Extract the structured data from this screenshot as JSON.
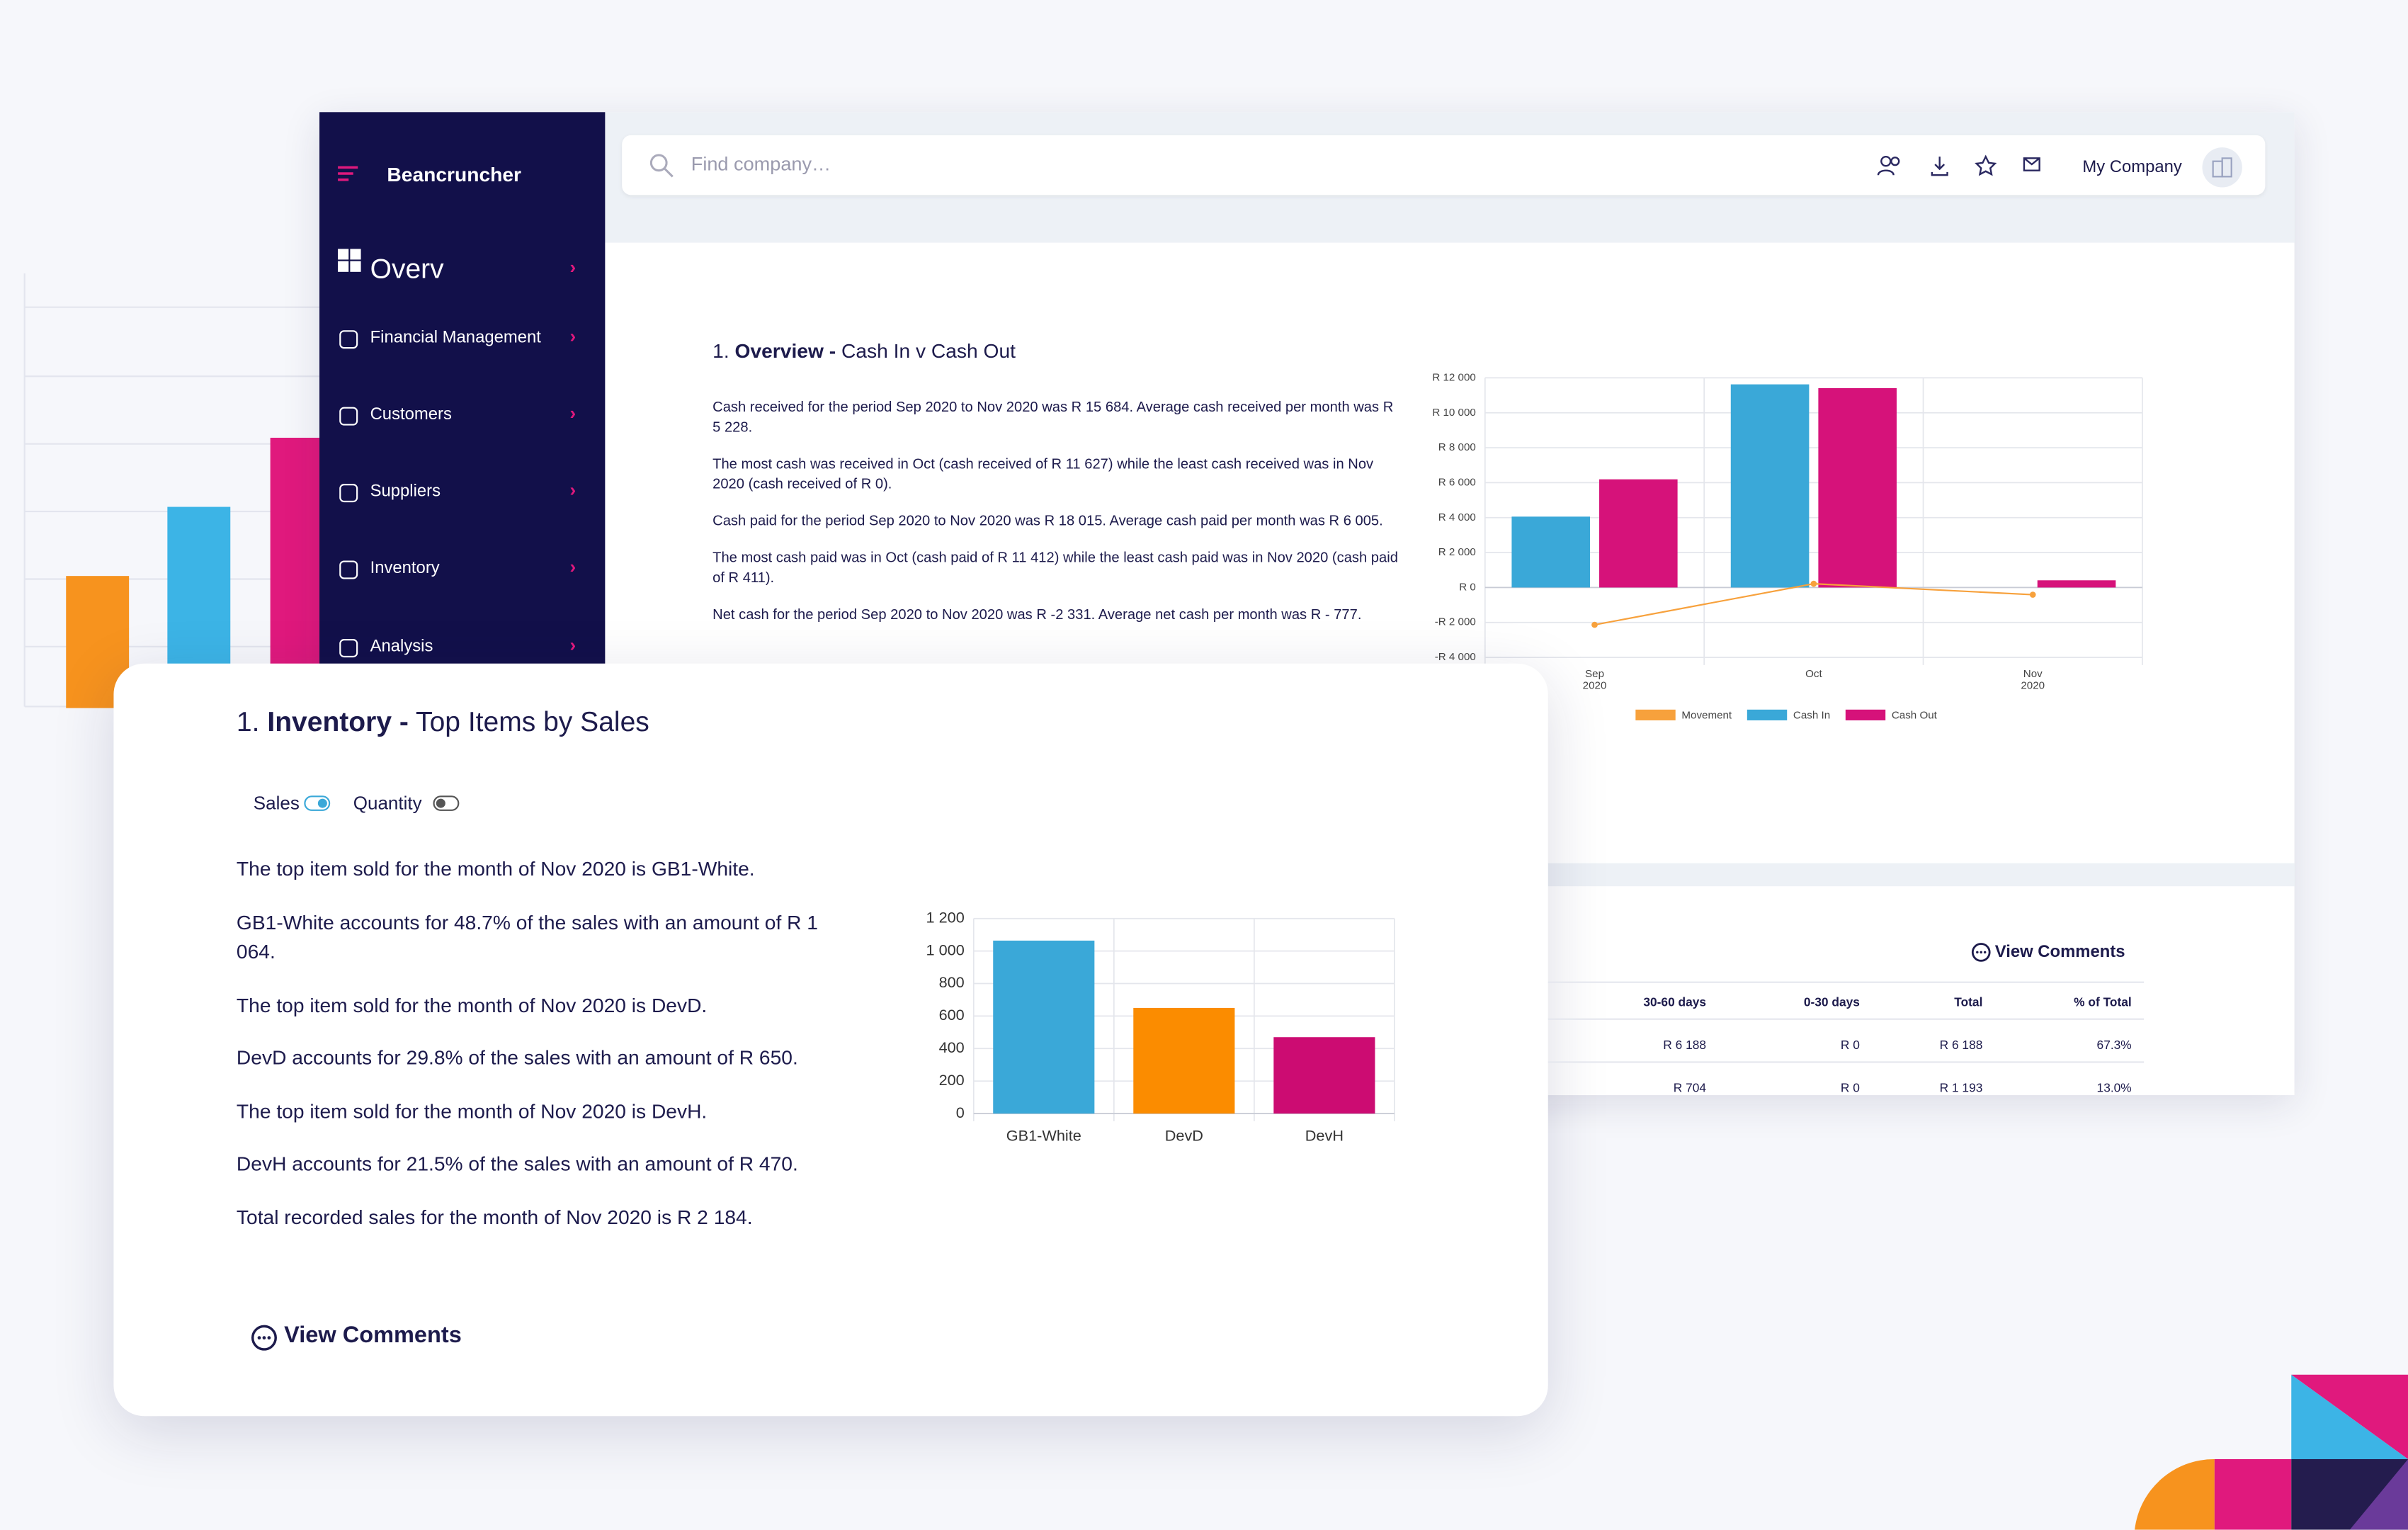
{
  "sidebar": {
    "brand": "Beancruncher",
    "items": [
      "Overv",
      "Financial Management",
      "Customers",
      "Suppliers",
      "Inventory",
      "Analysis"
    ]
  },
  "topbar": {
    "search_placeholder": "Find company…",
    "company": "My Company"
  },
  "overview": {
    "heading_num": "1.",
    "heading_bold": "Overview -",
    "heading_rest": "Cash In v Cash Out",
    "paragraphs": [
      "Cash received for the period Sep 2020 to Nov 2020 was R 15 684. Average cash received per month was R 5 228.",
      "The most cash was received in Oct (cash received of R 11 627) while the least cash received was in Nov 2020 (cash received of R 0).",
      "Cash paid for the period Sep 2020 to Nov 2020 was R 18 015. Average cash paid per month was R 6 005.",
      "The most cash paid was in Oct (cash paid of R 11 412) while the least cash paid was in Nov 2020 (cash paid of R 411).",
      "Net cash for the period Sep 2020 to Nov 2020 was R -2 331. Average net cash per month was R - 777."
    ],
    "chart": {
      "type": "bar",
      "categories": [
        "Sep 2020",
        "Oct",
        "Nov 2020"
      ],
      "series": [
        {
          "name": "Movement",
          "type": "line",
          "color": "#f7a13c",
          "values": [
            -2135,
            215,
            -411
          ]
        },
        {
          "name": "Cash In",
          "type": "bar",
          "color": "#3aa8d8",
          "values": [
            4057,
            11627,
            0
          ]
        },
        {
          "name": "Cash Out",
          "type": "bar",
          "color": "#d6127a",
          "values": [
            6192,
            11412,
            411
          ]
        }
      ],
      "ylim": [
        -4000,
        12000
      ],
      "yticks": [
        {
          "value": -4000,
          "label": "-R 4 000"
        },
        {
          "value": -2000,
          "label": "-R 2 000"
        },
        {
          "value": 0,
          "label": "R 0"
        },
        {
          "value": 2000,
          "label": "R 2 000"
        },
        {
          "value": 4000,
          "label": "R 4 000"
        },
        {
          "value": 6000,
          "label": "R 6 000"
        },
        {
          "value": 8000,
          "label": "R 8 000"
        },
        {
          "value": 10000,
          "label": "R 10 000"
        },
        {
          "value": 12000,
          "label": "R 12 000"
        }
      ],
      "grid": true
    }
  },
  "inventory": {
    "heading_num": "1.",
    "heading_bold": "Inventory -",
    "heading_rest": "Top Items by Sales",
    "toggles": [
      "Sales",
      "Quantity"
    ],
    "paragraphs": [
      "The top item sold for the month of Nov 2020 is GB1-White.",
      "GB1-White accounts for 48.7% of the sales with an amount of R 1 064.",
      "The top item sold for the month of Nov 2020 is DevD.",
      "DevD accounts for 29.8% of the sales with an amount of R 650.",
      "The top item sold for the month of Nov 2020 is DevH.",
      "DevH accounts for 21.5% of the sales with an amount of R 470.",
      "Total recorded sales for the month of Nov 2020 is R 2 184."
    ],
    "chart": {
      "type": "bar",
      "categories": [
        "GB1-White",
        "DevD",
        "DevH"
      ],
      "values": [
        1064,
        650,
        470
      ],
      "colors": [
        "#3aa8d8",
        "#fb8c00",
        "#cc0c72"
      ],
      "ylim": [
        0,
        1200
      ],
      "yticks": [
        0,
        200,
        400,
        600,
        800,
        {
          "value": 1000,
          "label": "1 000"
        },
        {
          "value": 1200,
          "label": "1 200"
        }
      ],
      "grid": true
    },
    "comments": "View Comments"
  },
  "table": {
    "comments": "View Comments",
    "columns": [
      "30-60 days",
      "0-30 days",
      "Total",
      "% of Total"
    ],
    "rows": [
      [
        "R 6 188",
        "R 0",
        "R 6 188",
        "67.3%"
      ],
      [
        "R 704",
        "R 0",
        "R 1 193",
        "13.0%"
      ]
    ]
  }
}
